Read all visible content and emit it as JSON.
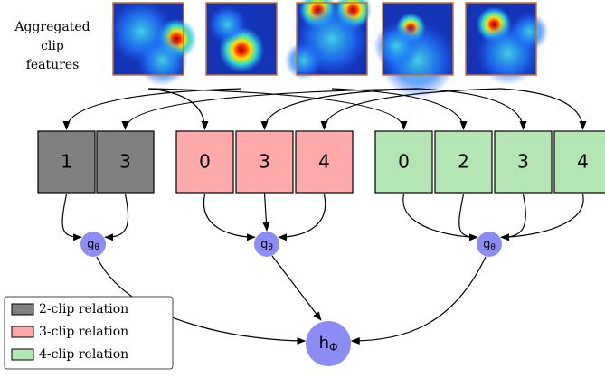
{
  "features_label": [
    "Aggregated",
    "clip",
    "features"
  ],
  "groups": [
    {
      "clips": [
        1,
        3
      ],
      "node": {
        "symbol": "g",
        "subscript": "θ"
      }
    },
    {
      "clips": [
        0,
        3,
        4
      ],
      "node": {
        "symbol": "g",
        "subscript": "θ"
      }
    },
    {
      "clips": [
        0,
        2,
        3,
        4
      ],
      "node": {
        "symbol": "g",
        "subscript": "θ"
      }
    }
  ],
  "output_node": {
    "symbol": "h",
    "subscript": "Φ"
  },
  "legend": [
    "2-clip relation",
    "3-clip relation",
    "4-clip relation"
  ]
}
